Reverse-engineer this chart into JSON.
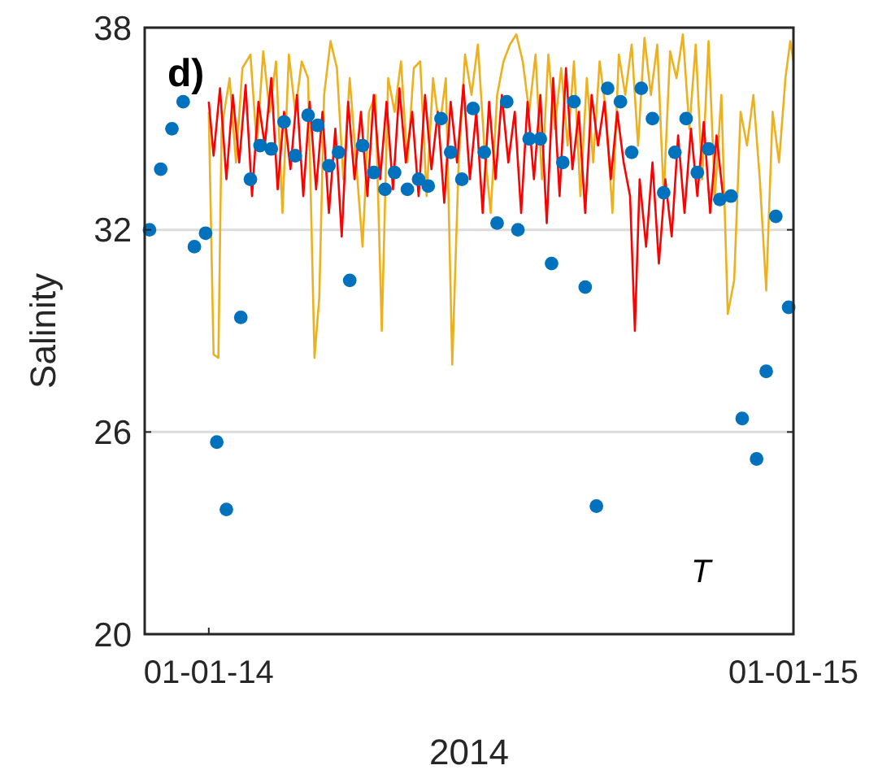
{
  "chart_data": {
    "type": "line",
    "xlabel": "2014",
    "ylabel": "Salinity",
    "annotations": [
      "d)",
      "T"
    ],
    "xlim": [
      "2013-11-22",
      "2015-01-01"
    ],
    "ylim": [
      20,
      38
    ],
    "xticks": [
      {
        "value": "2014-01-01",
        "label": "01-01-14"
      },
      {
        "value": "2015-01-01",
        "label": "01-01-15"
      }
    ],
    "yticks": [
      20,
      26,
      32,
      38
    ],
    "grid": "y",
    "series": [
      {
        "type": "line",
        "color": "#edb120",
        "marker": "none",
        "line_style": "solid",
        "x": [
          "2014-01-01",
          "2014-01-04",
          "2014-01-07",
          "2014-01-09",
          "2014-01-14",
          "2014-01-18",
          "2014-01-22",
          "2014-01-27",
          "2014-01-31",
          "2014-02-04",
          "2014-02-08",
          "2014-02-12",
          "2014-02-16",
          "2014-02-20",
          "2014-02-24",
          "2014-02-28",
          "2014-03-04",
          "2014-03-08",
          "2014-03-11",
          "2014-03-14",
          "2014-03-18",
          "2014-03-22",
          "2014-03-26",
          "2014-03-30",
          "2014-04-03",
          "2014-04-07",
          "2014-04-11",
          "2014-04-15",
          "2014-04-19",
          "2014-04-23",
          "2014-04-27",
          "2014-05-01",
          "2014-05-05",
          "2014-05-09",
          "2014-05-13",
          "2014-05-17",
          "2014-05-21",
          "2014-05-25",
          "2014-05-29",
          "2014-06-02",
          "2014-06-06",
          "2014-06-10",
          "2014-06-14",
          "2014-06-18",
          "2014-06-22",
          "2014-06-26",
          "2014-06-30",
          "2014-07-04",
          "2014-07-08",
          "2014-07-12",
          "2014-07-16",
          "2014-07-20",
          "2014-07-24",
          "2014-07-28",
          "2014-08-01",
          "2014-08-05",
          "2014-08-09",
          "2014-08-13",
          "2014-08-17",
          "2014-08-21",
          "2014-08-25",
          "2014-08-29",
          "2014-09-02",
          "2014-09-06",
          "2014-09-10",
          "2014-09-14",
          "2014-09-18",
          "2014-09-22",
          "2014-09-26",
          "2014-09-30",
          "2014-10-04",
          "2014-10-08",
          "2014-10-12",
          "2014-10-16",
          "2014-10-20",
          "2014-10-24",
          "2014-10-28",
          "2014-11-01",
          "2014-11-05",
          "2014-11-09",
          "2014-11-13",
          "2014-11-17",
          "2014-11-21",
          "2014-11-25",
          "2014-11-29",
          "2014-12-03",
          "2014-12-07",
          "2014-12-11",
          "2014-12-15",
          "2014-12-19",
          "2014-12-23",
          "2014-12-27",
          "2014-12-30",
          "2015-01-01"
        ],
        "values": [
          35.5,
          28.3,
          28.2,
          35,
          36.5,
          34,
          36.8,
          37.2,
          34.5,
          37.3,
          35.5,
          37,
          32.5,
          37.2,
          35.5,
          37,
          36.5,
          28.2,
          30,
          36,
          37.6,
          36.8,
          33.5,
          36.5,
          34,
          31.5,
          35.5,
          36,
          29,
          36.5,
          35.5,
          37,
          34,
          36.8,
          37,
          33,
          36.5,
          35,
          36.5,
          28,
          34,
          37.2,
          36,
          37.5,
          34.5,
          32.5,
          36,
          37,
          37.5,
          37.8,
          37,
          35.5,
          37.2,
          33.5,
          37.2,
          35,
          36.8,
          34.5,
          37,
          33,
          36.5,
          34,
          37,
          35.5,
          32.5,
          37.2,
          36,
          37.5,
          34.5,
          37.7,
          36,
          37.5,
          33,
          37.3,
          36.5,
          37.8,
          35,
          37.5,
          33.5,
          37.6,
          33,
          36,
          29.5,
          30.5,
          35.5,
          34.5,
          36,
          33.5,
          30.2,
          35.5,
          34,
          36.5,
          37.6,
          37
        ]
      },
      {
        "type": "line",
        "color": "#ff0000",
        "marker": "none",
        "line_style": "solid",
        "x": [
          "2014-01-01",
          "2014-01-04",
          "2014-01-08",
          "2014-01-12",
          "2014-01-16",
          "2014-01-20",
          "2014-01-24",
          "2014-01-28",
          "2014-02-01",
          "2014-02-05",
          "2014-02-09",
          "2014-02-13",
          "2014-02-17",
          "2014-02-21",
          "2014-02-25",
          "2014-03-01",
          "2014-03-05",
          "2014-03-09",
          "2014-03-13",
          "2014-03-17",
          "2014-03-21",
          "2014-03-25",
          "2014-03-29",
          "2014-04-02",
          "2014-04-06",
          "2014-04-10",
          "2014-04-14",
          "2014-04-18",
          "2014-04-22",
          "2014-04-26",
          "2014-04-30",
          "2014-05-04",
          "2014-05-08",
          "2014-05-12",
          "2014-05-16",
          "2014-05-20",
          "2014-05-24",
          "2014-05-28",
          "2014-06-01",
          "2014-06-05",
          "2014-06-09",
          "2014-06-13",
          "2014-06-17",
          "2014-06-21",
          "2014-06-25",
          "2014-06-29",
          "2014-07-03",
          "2014-07-07",
          "2014-07-11",
          "2014-07-15",
          "2014-07-19",
          "2014-07-23",
          "2014-07-27",
          "2014-07-31",
          "2014-08-04",
          "2014-08-08",
          "2014-08-12",
          "2014-08-16",
          "2014-08-20",
          "2014-08-24",
          "2014-08-28",
          "2014-09-01",
          "2014-09-05",
          "2014-09-09",
          "2014-09-13",
          "2014-09-17",
          "2014-09-21",
          "2014-09-24",
          "2014-09-27",
          "2014-10-01",
          "2014-10-05",
          "2014-10-09",
          "2014-10-13",
          "2014-10-17",
          "2014-10-21",
          "2014-10-25",
          "2014-10-29",
          "2014-11-02",
          "2014-11-06",
          "2014-11-10",
          "2014-11-14",
          "2014-11-18"
        ],
        "values": [
          35.8,
          34.2,
          36.2,
          33.5,
          36,
          34,
          36.3,
          33,
          35.8,
          34.5,
          36.5,
          33.2,
          35.5,
          33.8,
          36,
          33,
          35.8,
          33.2,
          35.5,
          32.5,
          35,
          31.8,
          35.8,
          33.5,
          35.5,
          33,
          36,
          33.5,
          35.8,
          33.2,
          36.2,
          34,
          35.5,
          33,
          36,
          33.8,
          35.5,
          32.8,
          35.8,
          34,
          36.3,
          33.5,
          35.5,
          32.5,
          35.8,
          33.5,
          36,
          34,
          35.5,
          32.5,
          35.8,
          33.5,
          36,
          32.2,
          36.5,
          33,
          36.8,
          33.8,
          35.5,
          32.5,
          36,
          34.5,
          35.8,
          33.5,
          35.5,
          34,
          33,
          29,
          33.5,
          31.5,
          34,
          31,
          33.5,
          31.8,
          34.8,
          32.5,
          35,
          33,
          35.2,
          32.5,
          34.8,
          33
        ]
      },
      {
        "type": "scatter",
        "color": "#0072bd",
        "marker": "circle",
        "x": [
          "2013-11-25",
          "2013-12-02",
          "2013-12-09",
          "2013-12-16",
          "2013-12-23",
          "2013-12-30",
          "2014-01-06",
          "2014-01-12",
          "2014-01-21",
          "2014-01-27",
          "2014-02-02",
          "2014-02-09",
          "2014-02-17",
          "2014-02-24",
          "2014-03-04",
          "2014-03-10",
          "2014-03-17",
          "2014-03-23",
          "2014-03-30",
          "2014-04-07",
          "2014-04-14",
          "2014-04-21",
          "2014-04-27",
          "2014-05-05",
          "2014-05-12",
          "2014-05-18",
          "2014-05-26",
          "2014-06-01",
          "2014-06-08",
          "2014-06-15",
          "2014-06-22",
          "2014-06-30",
          "2014-07-06",
          "2014-07-13",
          "2014-07-20",
          "2014-07-27",
          "2014-08-03",
          "2014-08-10",
          "2014-08-17",
          "2014-08-24",
          "2014-08-31",
          "2014-09-07",
          "2014-09-15",
          "2014-09-22",
          "2014-09-28",
          "2014-10-05",
          "2014-10-12",
          "2014-10-19",
          "2014-10-26",
          "2014-11-02",
          "2014-11-09",
          "2014-11-16",
          "2014-11-23",
          "2014-11-30",
          "2014-12-09",
          "2014-12-15",
          "2014-12-21",
          "2014-12-29"
        ],
        "values": [
          32,
          33.8,
          35,
          35.8,
          31.5,
          31.9,
          25.7,
          23.7,
          29.4,
          33.5,
          34.5,
          34.4,
          35.2,
          34.2,
          35.4,
          35.1,
          33.9,
          34.3,
          30.5,
          34.5,
          33.7,
          33.2,
          33.7,
          33.2,
          33.5,
          33.3,
          35.3,
          34.3,
          33.5,
          35.6,
          34.3,
          32.2,
          35.8,
          32,
          34.7,
          34.7,
          31,
          34,
          35.8,
          30.3,
          23.8,
          36.2,
          35.8,
          34.3,
          36.2,
          35.3,
          33.1,
          34.3,
          35.3,
          33.7,
          34.4,
          32.9,
          33,
          26.4,
          25.2,
          27.8,
          32.4,
          29.7
        ]
      }
    ]
  }
}
